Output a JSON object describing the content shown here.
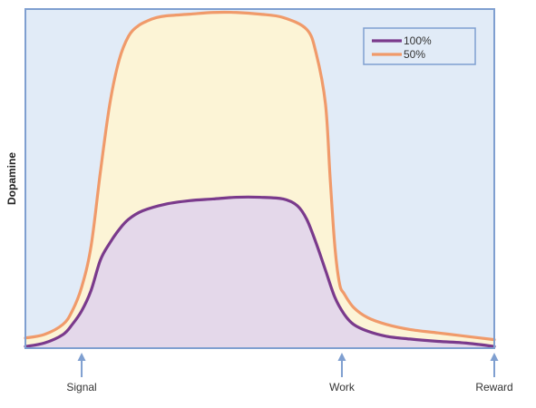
{
  "chart_data": {
    "type": "area",
    "ylabel": "Dopamine",
    "xlabel": "",
    "x_ticks": [
      {
        "label": "Signal",
        "x": 0.12
      },
      {
        "label": "Work",
        "x": 0.675
      },
      {
        "label": "Reward",
        "x": 1.0
      }
    ],
    "xlim": [
      0,
      1
    ],
    "ylim": [
      0,
      1
    ],
    "legend_position": "top-right",
    "colors": {
      "plot_background": "#e1ebf7",
      "plot_border": "#7f9fd0",
      "arrow": "#7f9fd0"
    },
    "series": [
      {
        "name": "50%",
        "color": "#f09a6a",
        "fill": "#fcf4d6",
        "x": [
          0,
          0.04,
          0.08,
          0.1,
          0.12,
          0.14,
          0.16,
          0.18,
          0.2,
          0.22,
          0.24,
          0.26,
          0.28,
          0.3,
          0.35,
          0.4,
          0.45,
          0.5,
          0.55,
          0.6,
          0.62,
          0.64,
          0.65,
          0.66,
          0.67,
          0.68,
          0.7,
          0.73,
          0.77,
          0.82,
          0.88,
          0.94,
          1.0
        ],
        "values": [
          0.03,
          0.04,
          0.07,
          0.11,
          0.18,
          0.3,
          0.52,
          0.72,
          0.85,
          0.92,
          0.95,
          0.965,
          0.975,
          0.98,
          0.985,
          0.99,
          0.99,
          0.985,
          0.975,
          0.94,
          0.87,
          0.72,
          0.5,
          0.3,
          0.19,
          0.16,
          0.12,
          0.09,
          0.07,
          0.055,
          0.045,
          0.035,
          0.025
        ]
      },
      {
        "name": "100%",
        "color": "#7a3a8c",
        "fill": "#e4d8ea",
        "x": [
          0,
          0.04,
          0.08,
          0.1,
          0.12,
          0.14,
          0.16,
          0.18,
          0.2,
          0.22,
          0.25,
          0.3,
          0.35,
          0.4,
          0.45,
          0.5,
          0.55,
          0.58,
          0.6,
          0.62,
          0.64,
          0.66,
          0.68,
          0.7,
          0.73,
          0.77,
          0.82,
          0.88,
          0.94,
          1.0
        ],
        "values": [
          0.005,
          0.015,
          0.04,
          0.07,
          0.11,
          0.17,
          0.26,
          0.31,
          0.35,
          0.38,
          0.405,
          0.425,
          0.435,
          0.44,
          0.445,
          0.445,
          0.44,
          0.42,
          0.38,
          0.31,
          0.23,
          0.15,
          0.1,
          0.07,
          0.05,
          0.035,
          0.027,
          0.02,
          0.015,
          0.005
        ]
      }
    ]
  }
}
